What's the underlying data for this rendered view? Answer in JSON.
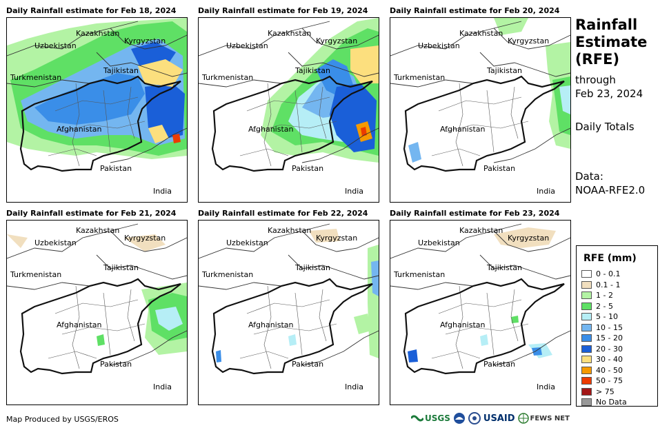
{
  "panels": [
    {
      "title": "Daily Rainfall estimate for Feb 18, 2024"
    },
    {
      "title": "Daily Rainfall estimate for Feb 19, 2024"
    },
    {
      "title": "Daily Rainfall estimate for Feb 20, 2024"
    },
    {
      "title": "Daily Rainfall estimate for Feb 21, 2024"
    },
    {
      "title": "Daily Rainfall estimate for Feb 22, 2024"
    },
    {
      "title": "Daily Rainfall estimate for Feb 23, 2024"
    }
  ],
  "map_labels": {
    "kazakhstan": "Kazakhstan",
    "kyrgyzstan": "Kyrgyzstan",
    "uzbekistan": "Uzbekistan",
    "tajikistan": "Tajikistan",
    "turkmenistan": "Turkmenistan",
    "afghanistan": "Afghanistan",
    "pakistan": "Pakistan",
    "india": "India"
  },
  "side": {
    "title_line1": "Rainfall",
    "title_line2": "Estimate",
    "title_line3": "(RFE)",
    "through": "through",
    "date": "Feb 23, 2024",
    "totals": "Daily Totals",
    "data_label": "Data:",
    "data_source": "NOAA-RFE2.0"
  },
  "legend": {
    "title": "RFE (mm)",
    "items": [
      {
        "label": "0 - 0.1",
        "color": "#ffffff"
      },
      {
        "label": "0.1 - 1",
        "color": "#f1dfbf"
      },
      {
        "label": "1 - 2",
        "color": "#b3f3a4"
      },
      {
        "label": "2 - 5",
        "color": "#5fe065"
      },
      {
        "label": "5 - 10",
        "color": "#b6eef6"
      },
      {
        "label": "10 - 15",
        "color": "#74b6f0"
      },
      {
        "label": "15 - 20",
        "color": "#3a8ee8"
      },
      {
        "label": "20 - 30",
        "color": "#1a5fd8"
      },
      {
        "label": "30 - 40",
        "color": "#fcdf7e"
      },
      {
        "label": "40 - 50",
        "color": "#f59a00"
      },
      {
        "label": "50 - 75",
        "color": "#ec3b00"
      },
      {
        "label": "> 75",
        "color": "#a31616"
      },
      {
        "label": "No Data",
        "color": "#999999"
      }
    ]
  },
  "footer": {
    "credit": "Map Produced by USGS/EROS",
    "logos": [
      "USGS",
      "USAID",
      "FEWS NET"
    ]
  },
  "colors": {
    "tan": "#f1dfbf",
    "light_green": "#b3f3a4",
    "green": "#5fe065",
    "light_blue": "#b6eef6",
    "sky": "#74b6f0",
    "blue": "#3a8ee8",
    "dark_blue": "#1a5fd8",
    "yellow": "#fcdf7e",
    "orange": "#f59a00",
    "red": "#ec3b00"
  }
}
